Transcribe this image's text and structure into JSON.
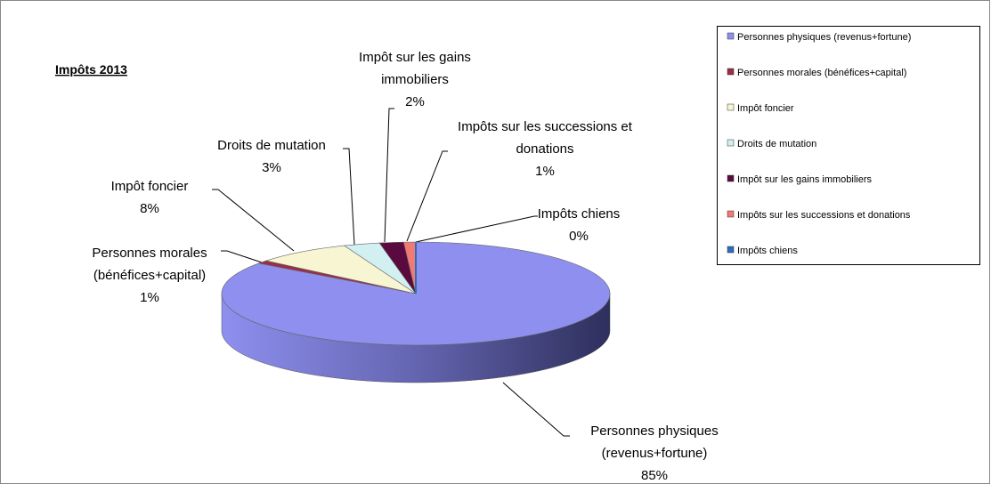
{
  "chart_data": {
    "type": "pie3d",
    "title": "Impôts 2013",
    "categories": [
      "Personnes physiques (revenus+fortune)",
      "Personnes morales (bénéfices+capital)",
      "Impôt foncier",
      "Droits de mutation",
      "Impôt sur les gains immobiliers",
      "Impôts sur les successions et donations",
      "Impôts chiens"
    ],
    "values": [
      85,
      1,
      8,
      3,
      2,
      1,
      0
    ],
    "value_labels": [
      "85%",
      "1%",
      "8%",
      "3%",
      "2%",
      "1%",
      "0%"
    ],
    "colors": [
      "#8e8fef",
      "#9b2d47",
      "#f7f5d2",
      "#d2f0f2",
      "#5a0a3e",
      "#f07b73",
      "#2a6ebd"
    ],
    "legend": "right"
  }
}
